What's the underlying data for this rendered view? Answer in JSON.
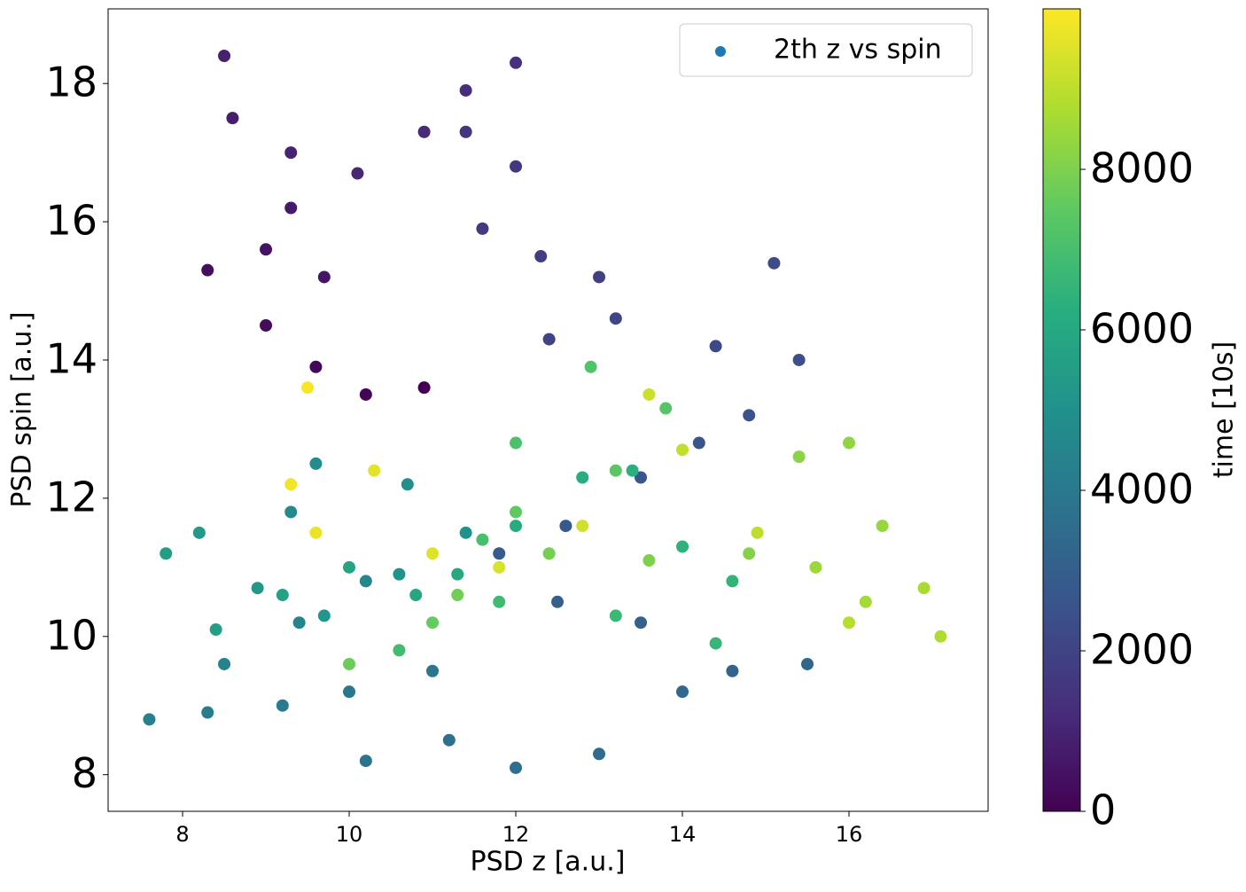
{
  "chart_data": {
    "type": "scatter",
    "xlabel": "PSD z [a.u.]",
    "ylabel": "PSD spin [a.u.]",
    "xlim": [
      7.106,
      17.67
    ],
    "ylim": [
      7.47,
      19.08
    ],
    "xticks": [
      8,
      10,
      12,
      14,
      16
    ],
    "yticks": [
      8,
      10,
      12,
      14,
      16,
      18
    ],
    "legend": "upper right",
    "colormap": "viridis",
    "colorbar": {
      "label": "time [10s]",
      "clim": [
        0,
        10000
      ],
      "ticks": [
        0,
        2000,
        4000,
        6000,
        8000
      ]
    },
    "series": [
      {
        "name": "2th z vs spin",
        "color": "#1f77b4",
        "x": [
          10.9,
          10.2,
          9.6,
          9.0,
          8.3,
          9.0,
          9.7,
          9.3,
          8.6,
          8.5,
          9.3,
          10.1,
          10.9,
          11.4,
          12.0,
          11.4,
          12.0,
          11.6,
          12.3,
          13.0,
          12.4,
          13.2,
          14.4,
          15.1,
          15.4,
          14.8,
          14.2,
          13.5,
          12.6,
          11.8,
          12.5,
          13.5,
          14.6,
          15.5,
          14.0,
          13.0,
          12.0,
          11.2,
          10.2,
          11.0,
          10.0,
          9.2,
          8.3,
          7.6,
          8.5,
          9.4,
          10.2,
          9.3,
          9.6,
          10.7,
          11.4,
          10.6,
          9.7,
          8.9,
          8.2,
          7.8,
          8.4,
          9.2,
          10.0,
          10.8,
          11.3,
          12.0,
          12.8,
          13.4,
          14.0,
          14.6,
          14.4,
          13.2,
          11.8,
          10.6,
          11.6,
          12.0,
          12.9,
          13.8,
          13.2,
          12.0,
          11.0,
          10.0,
          11.3,
          12.4,
          13.6,
          14.8,
          15.4,
          16.0,
          16.4,
          15.6,
          16.2,
          16.9,
          17.1,
          16.0,
          14.9,
          14.0,
          13.6,
          12.8,
          11.8,
          11.0,
          10.3,
          9.6,
          9.3,
          9.5
        ],
        "values": [
          13.6,
          13.5,
          13.9,
          14.5,
          15.3,
          15.6,
          15.2,
          16.2,
          17.5,
          18.4,
          17.0,
          16.7,
          17.3,
          17.9,
          18.3,
          17.3,
          16.8,
          15.9,
          15.5,
          15.2,
          14.3,
          14.6,
          14.2,
          15.4,
          14.0,
          13.2,
          12.8,
          12.3,
          11.6,
          11.2,
          10.5,
          10.2,
          9.5,
          9.6,
          9.2,
          8.3,
          8.1,
          8.5,
          8.2,
          9.5,
          9.2,
          9.0,
          8.9,
          8.8,
          9.6,
          10.2,
          10.8,
          11.8,
          12.5,
          12.2,
          11.5,
          10.9,
          10.3,
          10.7,
          11.5,
          11.2,
          10.1,
          10.6,
          11.0,
          10.6,
          10.9,
          11.6,
          12.3,
          12.4,
          11.3,
          10.8,
          9.9,
          10.3,
          10.5,
          9.8,
          11.4,
          12.8,
          13.9,
          13.3,
          12.4,
          11.8,
          10.2,
          9.6,
          10.6,
          11.2,
          11.1,
          11.2,
          12.6,
          12.8,
          11.6,
          11.0,
          10.5,
          10.7,
          10.0,
          10.2,
          11.5,
          12.7,
          13.5,
          11.6,
          11.0,
          11.2,
          12.4,
          11.5,
          12.2,
          13.6
        ],
        "c": [
          0,
          100,
          200,
          300,
          400,
          500,
          600,
          700,
          800,
          900,
          1000,
          1100,
          1200,
          1300,
          1400,
          1500,
          1600,
          1700,
          1800,
          1900,
          2000,
          2100,
          2200,
          2300,
          2400,
          2500,
          2600,
          2700,
          2800,
          2900,
          3000,
          3100,
          3200,
          3300,
          3400,
          3500,
          3600,
          3700,
          3800,
          3900,
          4000,
          4100,
          4200,
          4300,
          4400,
          4500,
          4600,
          4700,
          4800,
          4900,
          5000,
          5100,
          5200,
          5300,
          5400,
          5500,
          5600,
          5700,
          5800,
          5900,
          6000,
          6100,
          6200,
          6300,
          6400,
          6500,
          6600,
          6700,
          6800,
          6900,
          7000,
          7100,
          7200,
          7300,
          7400,
          7500,
          7600,
          7700,
          7800,
          7900,
          8000,
          8100,
          8200,
          8300,
          8400,
          8500,
          8600,
          8700,
          8800,
          8900,
          9000,
          9100,
          9200,
          9300,
          9400,
          9500,
          9600,
          9700,
          9800,
          9900
        ]
      }
    ]
  }
}
